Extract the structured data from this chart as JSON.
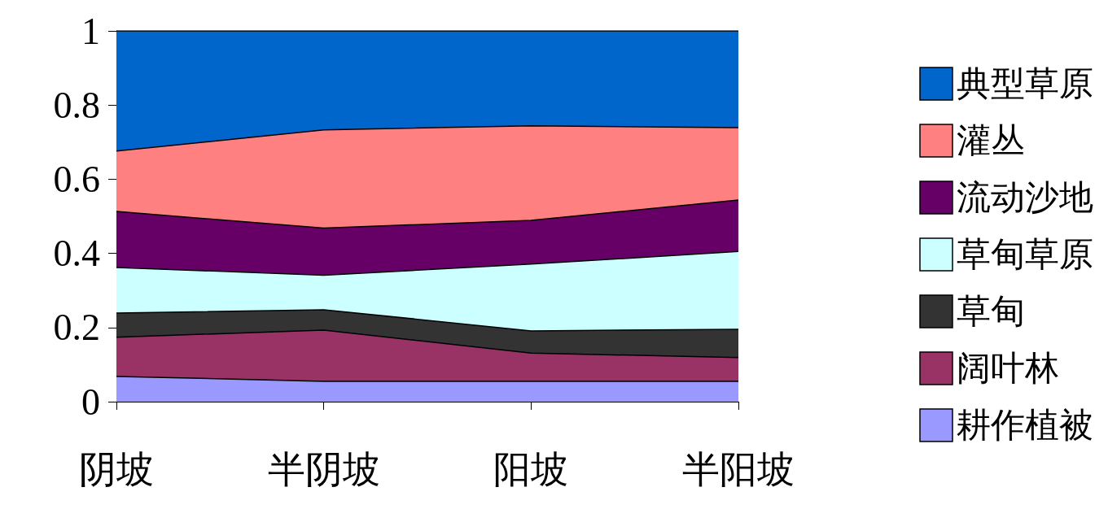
{
  "chart_data": {
    "type": "area",
    "stacked": true,
    "categories": [
      "阴坡",
      "半阴坡",
      "阳坡",
      "半阳坡"
    ],
    "series": [
      {
        "name": "耕作植被",
        "color": "#9999ff",
        "values": [
          0.068,
          0.055,
          0.055,
          0.055
        ]
      },
      {
        "name": "阔叶林",
        "color": "#993366",
        "values": [
          0.106,
          0.138,
          0.076,
          0.064
        ]
      },
      {
        "name": "草甸",
        "color": "#333333",
        "values": [
          0.065,
          0.055,
          0.06,
          0.076
        ]
      },
      {
        "name": "草甸草原",
        "color": "#ccffff",
        "values": [
          0.123,
          0.093,
          0.18,
          0.21
        ]
      },
      {
        "name": "流动沙地",
        "color": "#660066",
        "values": [
          0.151,
          0.127,
          0.118,
          0.139
        ]
      },
      {
        "name": "灌丛",
        "color": "#ff8080",
        "values": [
          0.163,
          0.265,
          0.255,
          0.195
        ]
      },
      {
        "name": "典型草原",
        "color": "#0066cc",
        "values": [
          0.324,
          0.267,
          0.256,
          0.261
        ]
      }
    ],
    "ylim": [
      0,
      1
    ],
    "yticks": [
      0,
      0.2,
      0.4,
      0.6,
      0.8,
      1
    ],
    "grid": false,
    "legend": "right"
  }
}
